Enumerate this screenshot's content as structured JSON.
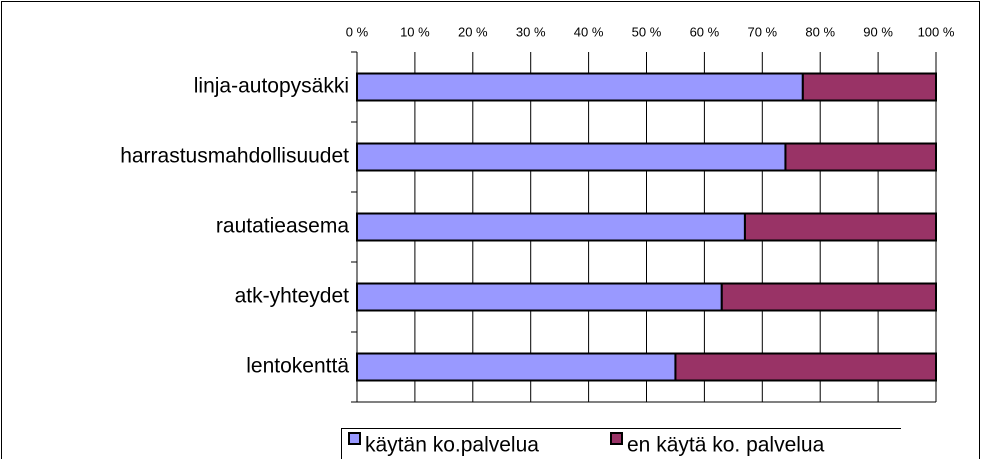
{
  "chart_data": {
    "type": "stacked-bar-horizontal",
    "categories": [
      "linja-autopysäkki",
      "harrastusmahdollisuudet",
      "rautatieasema",
      "atk-yhteydet",
      "lentokenttä"
    ],
    "series": [
      {
        "name": "käytän ko.palvelua",
        "color": "#9999ff",
        "values": [
          77,
          74,
          67,
          63,
          55
        ]
      },
      {
        "name": "en käytä ko. palvelua",
        "color": "#993366",
        "values": [
          23,
          26,
          33,
          37,
          45
        ]
      }
    ],
    "xlim": [
      0,
      100
    ],
    "xticks": [
      {
        "value": 0,
        "label": "0 %"
      },
      {
        "value": 10,
        "label": "10 %"
      },
      {
        "value": 20,
        "label": "20 %"
      },
      {
        "value": 30,
        "label": "30 %"
      },
      {
        "value": 40,
        "label": "40 %"
      },
      {
        "value": 50,
        "label": "50 %"
      },
      {
        "value": 60,
        "label": "60 %"
      },
      {
        "value": 70,
        "label": "70 %"
      },
      {
        "value": 80,
        "label": "80 %"
      },
      {
        "value": 90,
        "label": "90 %"
      },
      {
        "value": 100,
        "label": "100 %"
      }
    ],
    "grid": true
  }
}
